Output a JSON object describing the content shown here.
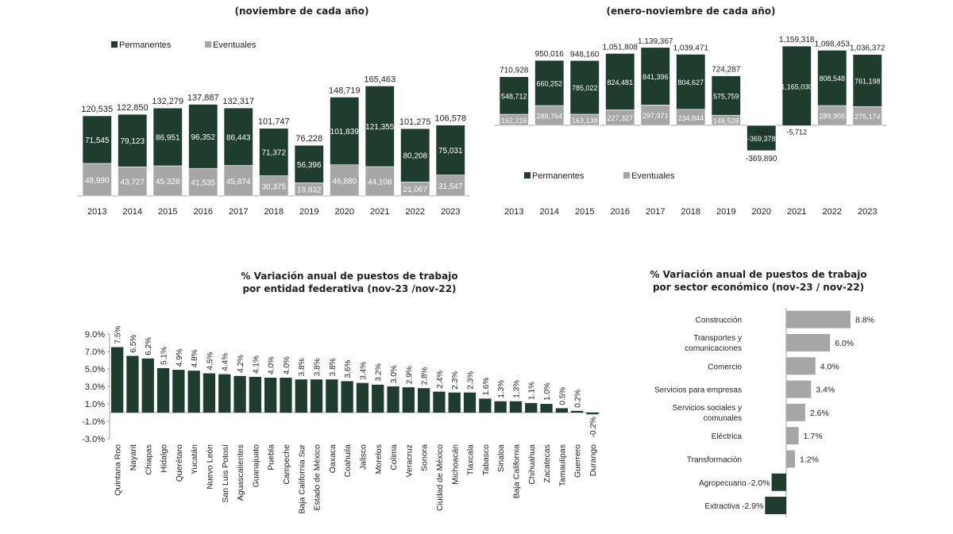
{
  "colors": {
    "dark": "#1e3d2e",
    "gray": "#a6a6a6",
    "axis": "#888888"
  },
  "chart_data": [
    {
      "type": "bar",
      "stacked": true,
      "title": "",
      "subtitle": "(noviembre de cada año)",
      "legend_position": "top-left",
      "categories": [
        "2013",
        "2014",
        "2015",
        "2016",
        "2017",
        "2018",
        "2019",
        "2020",
        "2021",
        "2022",
        "2023"
      ],
      "series": [
        {
          "name": "Permanentes",
          "values": [
            71545,
            79123,
            86951,
            96352,
            86443,
            71372,
            56396,
            101839,
            121355,
            80208,
            75031
          ],
          "labels": [
            "71,545",
            "79,123",
            "86,951",
            "96,352",
            "86,443",
            "71,372",
            "56,396",
            "101,839",
            "121,355",
            "80,208",
            "75,031"
          ]
        },
        {
          "name": "Eventuales",
          "values": [
            48990,
            43727,
            45328,
            41535,
            45874,
            30375,
            19832,
            46880,
            44108,
            21067,
            31547
          ],
          "labels": [
            "48,990",
            "43,727",
            "45,328",
            "41,535",
            "45,874",
            "30,375",
            "19,832",
            "46,880",
            "44,108",
            "21,067",
            "31,547"
          ]
        }
      ],
      "totals": [
        "120,535",
        "122,850",
        "132,279",
        "137,887",
        "132,317",
        "101,747",
        "76,228",
        "148,719",
        "165,463",
        "101,275",
        "106,578"
      ]
    },
    {
      "type": "bar",
      "stacked": true,
      "title": "",
      "subtitle": "(enero-noviembre de cada año)",
      "legend_position": "bottom-left",
      "categories": [
        "2013",
        "2014",
        "2015",
        "2016",
        "2017",
        "2018",
        "2019",
        "2020",
        "2021",
        "2022",
        "2023"
      ],
      "series": [
        {
          "name": "Permanentes",
          "values": [
            548712,
            660252,
            785022,
            824481,
            841396,
            804627,
            575759,
            -369378,
            1165030,
            808548,
            761198
          ],
          "labels": [
            "548,712",
            "660,252",
            "785,022",
            "824,481",
            "841,396",
            "804,627",
            "575,759",
            "-369,378",
            "1,165,030",
            "808,548",
            "761,198"
          ]
        },
        {
          "name": "Eventuales",
          "values": [
            162216,
            289764,
            163138,
            227327,
            297971,
            234844,
            148528,
            -512,
            -5712,
            289905,
            275174
          ],
          "labels": [
            "162,216",
            "289,764",
            "163,138",
            "227,327",
            "297,971",
            "234,844",
            "148,528",
            "-512",
            "-5,712",
            "289,905",
            "275,174"
          ]
        }
      ],
      "totals": [
        "710,928",
        "950,016",
        "948,160",
        "1,051,808",
        "1,139,367",
        "1,039,471",
        "724,287",
        "-369,890",
        "1,159,318",
        "1,098,453",
        "1,036,372"
      ]
    },
    {
      "type": "bar",
      "title": "% Variación anual de puestos de trabajo",
      "subtitle": "por entidad federativa (nov-23 /nov-22)",
      "ylim": [
        -3,
        9
      ],
      "yticks": [
        "9.0%",
        "7.0%",
        "5.0%",
        "3.0%",
        "1.0%",
        "-1.0%",
        "-3.0%"
      ],
      "categories": [
        "Quintana Roo",
        "Nayarit",
        "Chiapas",
        "Hidalgo",
        "Querétaro",
        "Yucatán",
        "Nuevo León",
        "San Luis Potosí",
        "Aguascalientes",
        "Guanajuato",
        "Puebla",
        "Campeche",
        "Baja California Sur",
        "Estado de México",
        "Oaxaca",
        "Coahuila",
        "Jalisco",
        "Morelos",
        "Colima",
        "Veracruz",
        "Sonora",
        "Ciudad de México",
        "Michoacán",
        "Tlaxcala",
        "Tabasco",
        "Sinaloa",
        "Baja California",
        "Chihuahua",
        "Zacatecas",
        "Tamaulipas",
        "Guerrero",
        "Durango"
      ],
      "values": [
        7.5,
        6.5,
        6.2,
        5.1,
        4.9,
        4.8,
        4.5,
        4.4,
        4.2,
        4.1,
        4.0,
        4.0,
        3.8,
        3.8,
        3.8,
        3.6,
        3.4,
        3.2,
        3.0,
        2.9,
        2.8,
        2.4,
        2.3,
        2.3,
        1.6,
        1.3,
        1.3,
        1.1,
        1.0,
        0.5,
        0.2,
        -0.2
      ],
      "labels": [
        "7.5%",
        "6.5%",
        "6.2%",
        "5.1%",
        "4.9%",
        "4.8%",
        "4.5%",
        "4.4%",
        "4.2%",
        "4.1%",
        "4.0%",
        "4.0%",
        "3.8%",
        "3.8%",
        "3.8%",
        "3.6%",
        "3.4%",
        "3.2%",
        "3.0%",
        "2.9%",
        "2.8%",
        "2.4%",
        "2.3%",
        "2.3%",
        "1.6%",
        "1.3%",
        "1.3%",
        "1.1%",
        "1.0%",
        "0.5%",
        "0.2%",
        "-0.2%"
      ]
    },
    {
      "type": "bar",
      "orientation": "horizontal",
      "title": "% Variación anual de puestos de trabajo",
      "subtitle": "por sector económico (nov-23 / nov-22)",
      "categories": [
        "Construcción",
        "Transportes y comunicaciones",
        "Comercio",
        "Servicios para empresas",
        "Servicios sociales y comunales",
        "Eléctrica",
        "Transformación",
        "Agropecuario",
        "Extractiva"
      ],
      "values": [
        8.8,
        6.0,
        4.0,
        3.4,
        2.6,
        1.7,
        1.2,
        -2.0,
        -2.9
      ],
      "labels": [
        "8.8%",
        "6.0%",
        "4.0%",
        "3.4%",
        "2.6%",
        "1.7%",
        "1.2%",
        "-2.0%",
        "-2.9%"
      ]
    }
  ]
}
